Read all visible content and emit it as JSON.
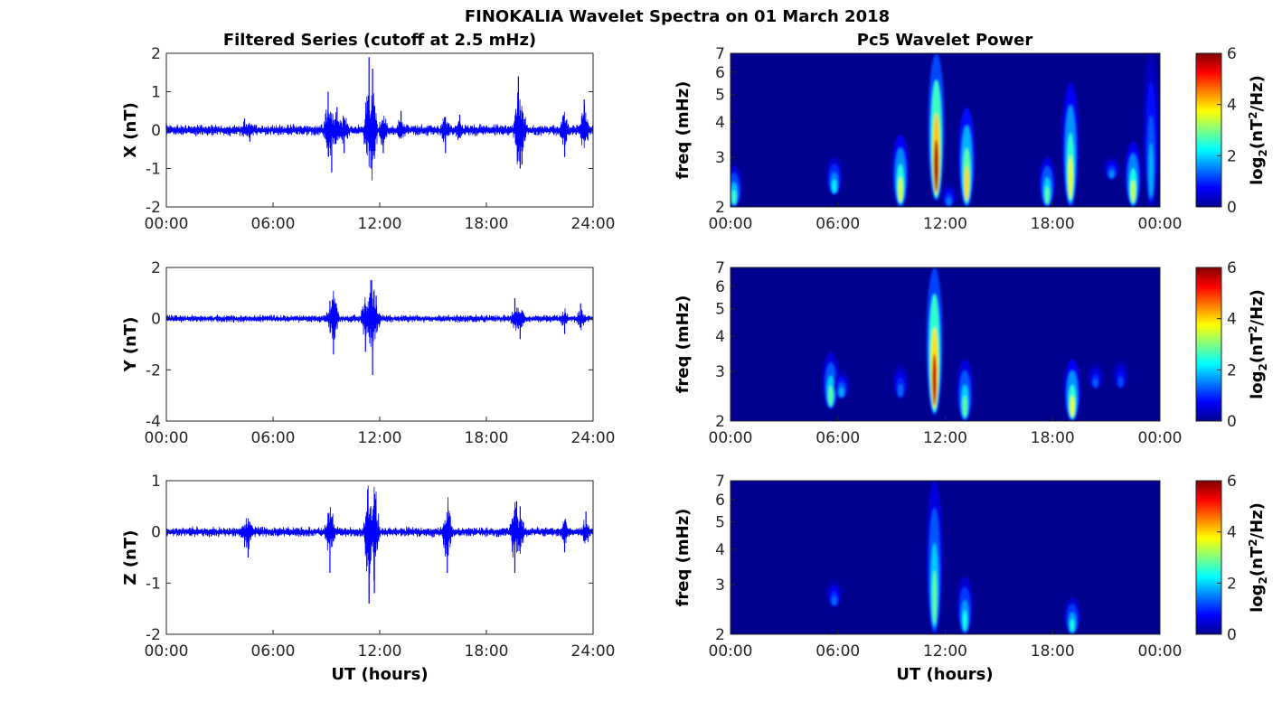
{
  "figure": {
    "suptitle": "FINOKALIA Wavelet Spectra on 01 March 2018",
    "left_title": "Filtered Series (cutoff at 2.5 mHz)",
    "right_title": "Pc5 Wavelet Power",
    "xlabel": "UT (hours)"
  },
  "colors": {
    "trace": "#0000ff",
    "spectrum_background": "#00008f",
    "colormap": "jet"
  },
  "chart_data": [
    {
      "type": "line",
      "component": "X",
      "ylabel": "X (nT)",
      "ylim": [
        -2,
        2
      ],
      "yticks": [
        "-2",
        "-1",
        "0",
        "1",
        "2"
      ],
      "xlim": [
        0,
        24
      ],
      "xticks": [
        "00:00",
        "06:00",
        "12:00",
        "18:00",
        "24:00"
      ],
      "grid": false,
      "baseline_amplitude": 0.12,
      "series": [
        {
          "x": [
            0,
            4.4,
            4.7,
            9.1,
            9.3,
            9.6,
            10.0,
            11.4,
            11.5,
            11.6,
            12.2,
            13.2,
            15.7,
            16.5,
            19.8,
            19.9,
            20.0,
            22.4,
            23.5
          ],
          "y": [
            0.2,
            0.3,
            -0.3,
            1.0,
            -1.1,
            0.6,
            -0.6,
            1.9,
            -1.0,
            1.6,
            -0.6,
            0.5,
            -0.6,
            0.4,
            1.4,
            -1.0,
            -0.9,
            -0.7,
            0.8
          ]
        }
      ]
    },
    {
      "type": "line",
      "component": "Y",
      "ylabel": "Y (nT)",
      "ylim": [
        -4,
        2
      ],
      "yticks": [
        "-4",
        "-2",
        "0",
        "2"
      ],
      "xlim": [
        0,
        24
      ],
      "xticks": [
        "00:00",
        "06:00",
        "12:00",
        "18:00",
        "24:00"
      ],
      "grid": false,
      "baseline_amplitude": 0.12,
      "series": [
        {
          "x": [
            9.2,
            9.4,
            11.2,
            11.5,
            11.6,
            11.8,
            19.6,
            19.9,
            22.4,
            23.3
          ],
          "y": [
            0.7,
            -1.4,
            -1.3,
            1.5,
            -2.2,
            0.9,
            0.8,
            -0.8,
            -0.6,
            0.6
          ]
        }
      ]
    },
    {
      "type": "line",
      "component": "Z",
      "ylabel": "Z (nT)",
      "ylim": [
        -2,
        1
      ],
      "yticks": [
        "-2",
        "-1",
        "0",
        "1"
      ],
      "xlim": [
        0,
        24
      ],
      "xticks": [
        "00:00",
        "06:00",
        "12:00",
        "18:00",
        "24:00"
      ],
      "grid": false,
      "baseline_amplitude": 0.08,
      "series": [
        {
          "x": [
            4.4,
            4.6,
            9.2,
            11.4,
            11.5,
            11.7,
            15.8,
            19.6,
            19.7,
            19.9,
            22.4,
            23.6
          ],
          "y": [
            -0.3,
            -0.5,
            -0.8,
            -1.4,
            0.5,
            -1.2,
            -0.8,
            -0.8,
            0.6,
            0.5,
            -0.4,
            0.4
          ]
        }
      ]
    },
    {
      "type": "heatmap",
      "component": "X",
      "ylabel": "freq (mHz)",
      "y_scale": "log",
      "ylim": [
        2,
        7
      ],
      "yticks": [
        "2",
        "3",
        "4",
        "5",
        "6",
        "7"
      ],
      "xlim": [
        0,
        24
      ],
      "xticks": [
        "00:00",
        "06:00",
        "12:00",
        "18:00",
        "00:00"
      ],
      "colorbar": {
        "label_main": "log",
        "label_sub": "2",
        "label_rest_a": "(nT",
        "label_sup": "2",
        "label_rest_b": "/Hz)",
        "range": [
          0,
          6
        ],
        "ticks": [
          "0",
          "2",
          "4",
          "6"
        ]
      },
      "blobs": [
        {
          "t": 0.2,
          "f_lo": 2.0,
          "f_hi": 2.8,
          "peak": 2.6
        },
        {
          "t": 5.8,
          "f_lo": 2.2,
          "f_hi": 3.0,
          "peak": 2.2
        },
        {
          "t": 9.5,
          "f_lo": 2.0,
          "f_hi": 3.6,
          "peak": 3.5
        },
        {
          "t": 11.5,
          "f_lo": 2.1,
          "f_hi": 7.0,
          "peak": 5.8
        },
        {
          "t": 12.2,
          "f_lo": 2.0,
          "f_hi": 2.4,
          "peak": 1.5
        },
        {
          "t": 13.2,
          "f_lo": 2.0,
          "f_hi": 4.5,
          "peak": 4.0
        },
        {
          "t": 17.7,
          "f_lo": 2.0,
          "f_hi": 3.0,
          "peak": 2.8
        },
        {
          "t": 19.0,
          "f_lo": 2.0,
          "f_hi": 5.5,
          "peak": 3.6
        },
        {
          "t": 21.3,
          "f_lo": 2.5,
          "f_hi": 3.0,
          "peak": 1.6
        },
        {
          "t": 22.5,
          "f_lo": 2.0,
          "f_hi": 3.4,
          "peak": 3.4
        },
        {
          "t": 23.5,
          "f_lo": 2.0,
          "f_hi": 7.0,
          "peak": 1.8
        }
      ]
    },
    {
      "type": "heatmap",
      "component": "Y",
      "ylabel": "freq (mHz)",
      "y_scale": "log",
      "ylim": [
        2,
        7
      ],
      "yticks": [
        "2",
        "3",
        "4",
        "5",
        "6",
        "7"
      ],
      "xlim": [
        0,
        24
      ],
      "xticks": [
        "00:00",
        "06:00",
        "12:00",
        "18:00",
        "00:00"
      ],
      "colorbar": {
        "label_main": "log",
        "label_sub": "2",
        "label_rest_a": "(nT",
        "label_sup": "2",
        "label_rest_b": "/Hz)",
        "range": [
          0,
          6
        ],
        "ticks": [
          "0",
          "2",
          "4",
          "6"
        ]
      },
      "blobs": [
        {
          "t": 5.6,
          "f_lo": 2.2,
          "f_hi": 3.5,
          "peak": 2.8
        },
        {
          "t": 6.2,
          "f_lo": 2.4,
          "f_hi": 3.0,
          "peak": 1.8
        },
        {
          "t": 9.5,
          "f_lo": 2.4,
          "f_hi": 3.2,
          "peak": 1.4
        },
        {
          "t": 11.4,
          "f_lo": 2.1,
          "f_hi": 7.0,
          "peak": 5.6
        },
        {
          "t": 13.1,
          "f_lo": 2.0,
          "f_hi": 3.3,
          "peak": 2.8
        },
        {
          "t": 19.1,
          "f_lo": 2.0,
          "f_hi": 3.3,
          "peak": 3.6
        },
        {
          "t": 20.4,
          "f_lo": 2.6,
          "f_hi": 3.2,
          "peak": 1.3
        },
        {
          "t": 21.8,
          "f_lo": 2.6,
          "f_hi": 3.3,
          "peak": 1.2
        }
      ]
    },
    {
      "type": "heatmap",
      "component": "Z",
      "ylabel": "freq (mHz)",
      "y_scale": "log",
      "ylim": [
        2,
        7
      ],
      "yticks": [
        "2",
        "3",
        "4",
        "5",
        "6",
        "7"
      ],
      "xlim": [
        0,
        24
      ],
      "xticks": [
        "00:00",
        "06:00",
        "12:00",
        "18:00",
        "00:00"
      ],
      "colorbar": {
        "label_main": "log",
        "label_sub": "2",
        "label_rest_a": "(nT",
        "label_sup": "2",
        "label_rest_b": "/Hz)",
        "range": [
          0,
          6
        ],
        "ticks": [
          "0",
          "2",
          "4",
          "6"
        ]
      },
      "blobs": [
        {
          "t": 5.8,
          "f_lo": 2.5,
          "f_hi": 3.1,
          "peak": 1.4
        },
        {
          "t": 11.4,
          "f_lo": 2.0,
          "f_hi": 7.0,
          "peak": 2.8
        },
        {
          "t": 13.1,
          "f_lo": 2.0,
          "f_hi": 3.2,
          "peak": 2.4
        },
        {
          "t": 19.1,
          "f_lo": 2.0,
          "f_hi": 2.7,
          "peak": 2.4
        }
      ]
    }
  ]
}
